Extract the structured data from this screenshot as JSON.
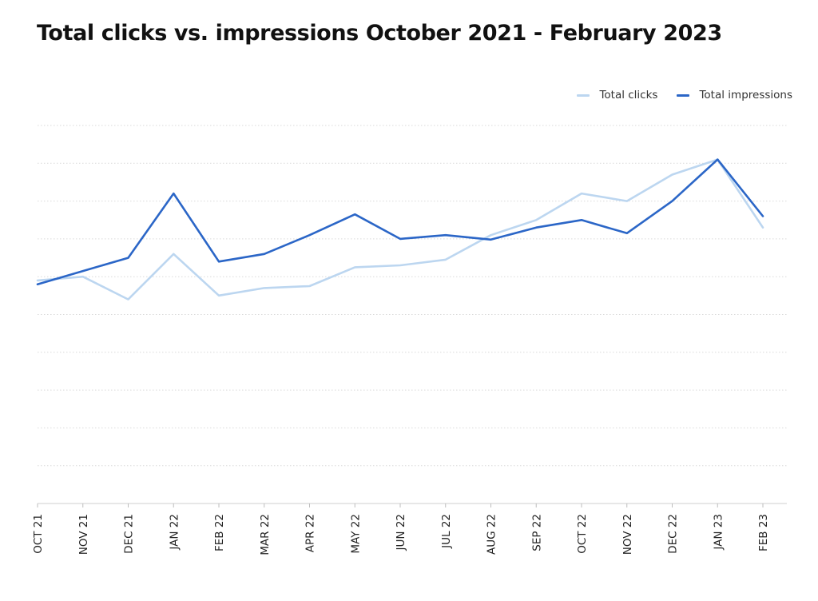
{
  "chart_data": {
    "type": "line",
    "title": "Total clicks vs. impressions October 2021 - February 2023",
    "categories": [
      "OCT 21",
      "NOV 21",
      "DEC 21",
      "JAN 22",
      "FEB 22",
      "MAR 22",
      "APR 22",
      "MAY 22",
      "JUN 22",
      "JUL 22",
      "AUG 22",
      "SEP 22",
      "OCT 22",
      "NOV 22",
      "DEC 22",
      "JAN 23",
      "FEB 23"
    ],
    "series": [
      {
        "name": "Total clicks",
        "color": "#bcd6f0",
        "values": [
          5.9,
          6.0,
          5.4,
          6.6,
          5.5,
          5.7,
          5.75,
          6.25,
          6.3,
          6.45,
          7.1,
          7.5,
          8.2,
          8.0,
          8.7,
          9.1,
          7.3
        ]
      },
      {
        "name": "Total impressions",
        "color": "#2b66c7",
        "values": [
          5.8,
          6.15,
          6.5,
          8.2,
          6.4,
          6.6,
          7.1,
          7.65,
          7.0,
          7.1,
          6.98,
          7.3,
          7.5,
          7.15,
          8.0,
          9.1,
          7.6
        ]
      }
    ],
    "ylim": [
      0,
      10
    ],
    "xlabel": "",
    "ylabel": "",
    "grid": true,
    "legend_position": "top-right"
  }
}
